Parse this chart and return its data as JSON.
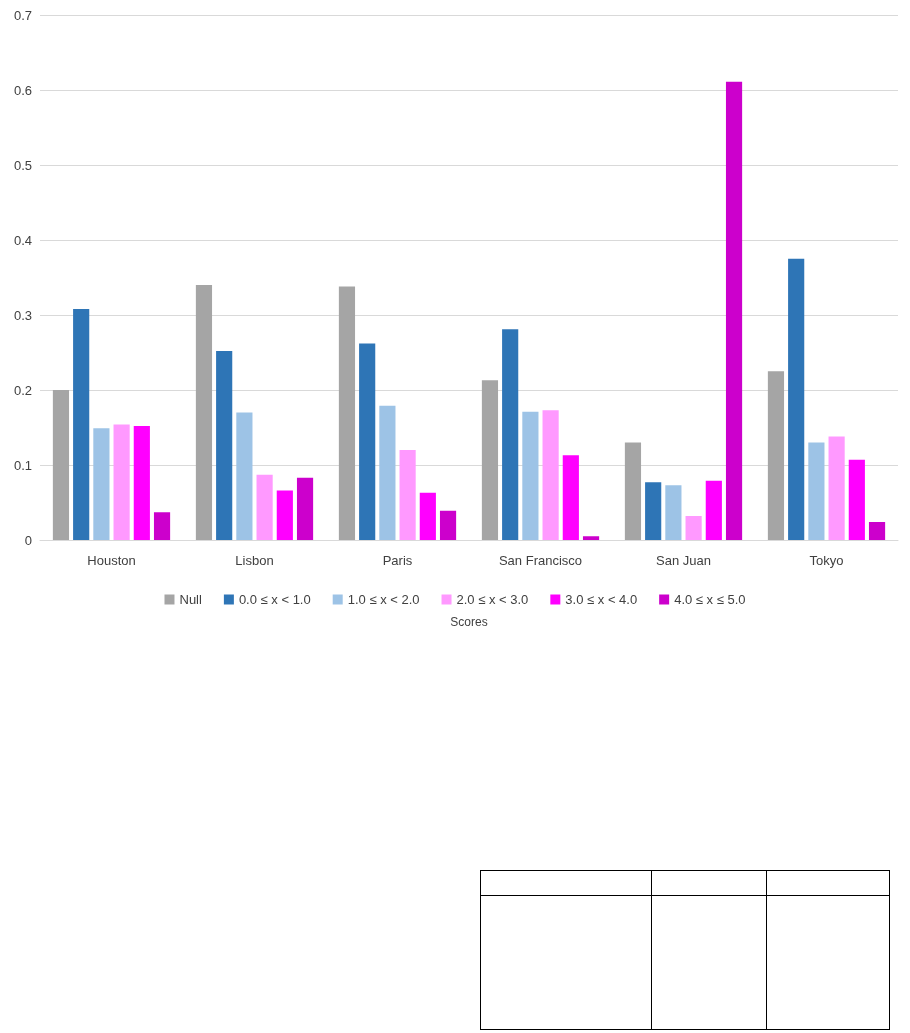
{
  "chart_data": {
    "type": "bar",
    "xlabel": "Scores",
    "categories": [
      "Houston",
      "Lisbon",
      "Paris",
      "San Francisco",
      "San Juan",
      "Tokyo"
    ],
    "series": [
      {
        "name": "Null",
        "color": "#a5a5a5",
        "values": [
          0.2,
          0.34,
          0.338,
          0.213,
          0.13,
          0.225
        ]
      },
      {
        "name": "0.0 ≤ x < 1.0",
        "color": "#2e75b6",
        "values": [
          0.308,
          0.252,
          0.262,
          0.281,
          0.077,
          0.375
        ]
      },
      {
        "name": "1.0 ≤ x < 2.0",
        "color": "#9dc3e6",
        "values": [
          0.149,
          0.17,
          0.179,
          0.171,
          0.073,
          0.13
        ]
      },
      {
        "name": "2.0 ≤ x < 3.0",
        "color": "#ff99ff",
        "values": [
          0.154,
          0.087,
          0.12,
          0.173,
          0.032,
          0.138
        ]
      },
      {
        "name": "3.0 ≤ x < 4.0",
        "color": "#ff00ff",
        "values": [
          0.152,
          0.066,
          0.063,
          0.113,
          0.079,
          0.107
        ]
      },
      {
        "name": "4.0 ≤ x ≤ 5.0",
        "color": "#cc00cc",
        "values": [
          0.037,
          0.083,
          0.039,
          0.005,
          0.611,
          0.024
        ]
      }
    ],
    "ylim": [
      0,
      0.7
    ],
    "yticks": [
      0,
      0.1,
      0.2,
      0.3,
      0.4,
      0.5,
      0.6,
      0.7
    ],
    "grid": "y",
    "legend": "bottom"
  }
}
